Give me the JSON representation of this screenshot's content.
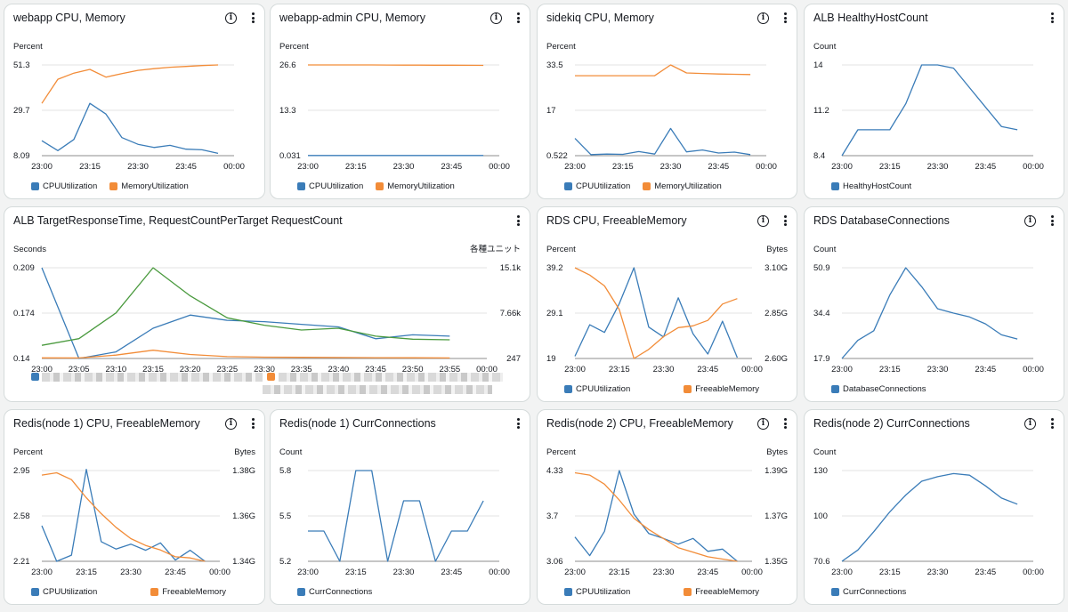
{
  "colors": {
    "blue": "#3a7cb8",
    "orange": "#f28c38",
    "green": "#4a9a3e",
    "grid": "#e3e3e3"
  },
  "cards": [
    {
      "title": "webapp CPU, Memory",
      "info": true,
      "leftUnit": "Percent",
      "rightUnit": "",
      "legend": [
        {
          "label": "CPUUtilization",
          "color": "#3a7cb8"
        },
        {
          "label": "MemoryUtilization",
          "color": "#f28c38"
        }
      ]
    },
    {
      "title": "webapp-admin CPU, Memory",
      "info": true,
      "leftUnit": "Percent",
      "rightUnit": "",
      "legend": [
        {
          "label": "CPUUtilization",
          "color": "#3a7cb8"
        },
        {
          "label": "MemoryUtilization",
          "color": "#f28c38"
        }
      ]
    },
    {
      "title": "sidekiq CPU, Memory",
      "info": true,
      "leftUnit": "Percent",
      "rightUnit": "",
      "legend": [
        {
          "label": "CPUUtilization",
          "color": "#3a7cb8"
        },
        {
          "label": "MemoryUtilization",
          "color": "#f28c38"
        }
      ]
    },
    {
      "title": "ALB HealthyHostCount",
      "info": false,
      "leftUnit": "Count",
      "rightUnit": "",
      "legend": [
        {
          "label": "HealthyHostCount",
          "color": "#3a7cb8"
        }
      ]
    },
    {
      "title": "ALB TargetResponseTime, RequestCountPerTarget RequestCount",
      "info": false,
      "leftUnit": "Seconds",
      "rightUnit": "各種ユニット",
      "legend": []
    },
    {
      "title": "RDS CPU, FreeableMemory",
      "info": true,
      "leftUnit": "Percent",
      "rightUnit": "Bytes",
      "legend": [
        {
          "label": "CPUUtilization",
          "color": "#3a7cb8"
        },
        {
          "label": "FreeableMemory",
          "color": "#f28c38"
        }
      ]
    },
    {
      "title": "RDS DatabaseConnections",
      "info": true,
      "leftUnit": "Count",
      "rightUnit": "",
      "legend": [
        {
          "label": "DatabaseConnections",
          "color": "#3a7cb8"
        }
      ]
    },
    {
      "title": "Redis(node 1) CPU, FreeableMemory",
      "info": true,
      "leftUnit": "Percent",
      "rightUnit": "Bytes",
      "legend": [
        {
          "label": "CPUUtilization",
          "color": "#3a7cb8"
        },
        {
          "label": "FreeableMemory",
          "color": "#f28c38"
        }
      ]
    },
    {
      "title": "Redis(node 1) CurrConnections",
      "info": false,
      "leftUnit": "Count",
      "rightUnit": "",
      "legend": [
        {
          "label": "CurrConnections",
          "color": "#3a7cb8"
        }
      ]
    },
    {
      "title": "Redis(node 2) CPU, FreeableMemory",
      "info": true,
      "leftUnit": "Percent",
      "rightUnit": "Bytes",
      "legend": [
        {
          "label": "CPUUtilization",
          "color": "#3a7cb8"
        },
        {
          "label": "FreeableMemory",
          "color": "#f28c38"
        }
      ]
    },
    {
      "title": "Redis(node 2) CurrConnections",
      "info": true,
      "leftUnit": "Count",
      "rightUnit": "",
      "legend": [
        {
          "label": "CurrConnections",
          "color": "#3a7cb8"
        }
      ]
    }
  ],
  "chart_data": [
    {
      "type": "line",
      "title": "webapp CPU, Memory",
      "ylabel": "Percent",
      "x": [
        "23:00",
        "23:05",
        "23:10",
        "23:15",
        "23:20",
        "23:25",
        "23:30",
        "23:35",
        "23:40",
        "23:45",
        "23:50",
        "23:55"
      ],
      "xticks": [
        "23:00",
        "23:15",
        "23:30",
        "23:45",
        "00:00"
      ],
      "xlim": [
        0,
        60
      ],
      "yticks": [
        "8.09",
        "29.7",
        "51.3"
      ],
      "ylim": [
        8.09,
        51.3
      ],
      "series": [
        {
          "name": "CPUUtilization",
          "color": "#3a7cb8",
          "axis": "left",
          "values": [
            15.2,
            10.5,
            15.8,
            33.0,
            27.9,
            16.7,
            13.5,
            12.0,
            13.0,
            11.2,
            10.9,
            9.2
          ]
        },
        {
          "name": "MemoryUtilization",
          "color": "#f28c38",
          "axis": "left",
          "values": [
            33.0,
            44.5,
            47.4,
            49.2,
            45.5,
            47.2,
            48.7,
            49.5,
            50.2,
            50.6,
            51.0,
            51.3
          ]
        }
      ]
    },
    {
      "type": "line",
      "title": "webapp-admin CPU, Memory",
      "ylabel": "Percent",
      "x": [
        "23:00",
        "23:05",
        "23:10",
        "23:15",
        "23:20",
        "23:25",
        "23:30",
        "23:35",
        "23:40",
        "23:45",
        "23:50",
        "23:55"
      ],
      "xticks": [
        "23:00",
        "23:15",
        "23:30",
        "23:45",
        "00:00"
      ],
      "xlim": [
        0,
        60
      ],
      "yticks": [
        "0.031",
        "13.3",
        "26.6"
      ],
      "ylim": [
        0.031,
        26.6
      ],
      "series": [
        {
          "name": "CPUUtilization",
          "color": "#3a7cb8",
          "axis": "left",
          "values": [
            0.09,
            0.09,
            0.09,
            0.09,
            0.09,
            0.09,
            0.09,
            0.09,
            0.09,
            0.09,
            0.09,
            0.09
          ]
        },
        {
          "name": "MemoryUtilization",
          "color": "#f28c38",
          "axis": "left",
          "values": [
            26.6,
            26.6,
            26.6,
            26.6,
            26.6,
            26.58,
            26.56,
            26.55,
            26.53,
            26.51,
            26.5,
            26.48
          ]
        }
      ]
    },
    {
      "type": "line",
      "title": "sidekiq CPU, Memory",
      "ylabel": "Percent",
      "x": [
        "23:00",
        "23:05",
        "23:10",
        "23:15",
        "23:20",
        "23:25",
        "23:30",
        "23:35",
        "23:40",
        "23:45",
        "23:50",
        "23:55"
      ],
      "xticks": [
        "23:00",
        "23:15",
        "23:30",
        "23:45",
        "00:00"
      ],
      "xlim": [
        0,
        60
      ],
      "yticks": [
        "0.522",
        "17",
        "33.5"
      ],
      "ylim": [
        0.522,
        33.5
      ],
      "series": [
        {
          "name": "CPUUtilization",
          "color": "#3a7cb8",
          "axis": "left",
          "values": [
            6.8,
            0.9,
            1.1,
            1.0,
            2.0,
            1.1,
            10.4,
            1.9,
            2.6,
            1.5,
            1.8,
            0.9
          ]
        },
        {
          "name": "MemoryUtilization",
          "color": "#f28c38",
          "axis": "left",
          "values": [
            29.6,
            29.6,
            29.6,
            29.6,
            29.6,
            29.6,
            33.5,
            30.6,
            30.4,
            30.2,
            30.1,
            30.0
          ]
        }
      ]
    },
    {
      "type": "line",
      "title": "ALB HealthyHostCount",
      "ylabel": "Count",
      "x": [
        "23:00",
        "23:05",
        "23:10",
        "23:15",
        "23:20",
        "23:25",
        "23:30",
        "23:35",
        "23:40",
        "23:45",
        "23:50",
        "23:55"
      ],
      "xticks": [
        "23:00",
        "23:15",
        "23:30",
        "23:45",
        "00:00"
      ],
      "xlim": [
        0,
        60
      ],
      "yticks": [
        "8.4",
        "11.2",
        "14"
      ],
      "ylim": [
        8.4,
        14
      ],
      "series": [
        {
          "name": "HealthyHostCount",
          "color": "#3a7cb8",
          "axis": "left",
          "values": [
            8.4,
            10,
            10,
            10,
            11.6,
            14,
            14,
            13.8,
            12.6,
            11.4,
            10.2,
            10
          ]
        }
      ]
    },
    {
      "type": "line",
      "title": "ALB TargetResponseTime, RequestCountPerTarget RequestCount",
      "ylabel": "Seconds",
      "y2label": "各種ユニット",
      "x": [
        "23:00",
        "23:05",
        "23:10",
        "23:15",
        "23:20",
        "23:25",
        "23:30",
        "23:35",
        "23:40",
        "23:45",
        "23:50",
        "23:55"
      ],
      "xticks": [
        "23:00",
        "23:05",
        "23:10",
        "23:15",
        "23:20",
        "23:25",
        "23:30",
        "23:35",
        "23:40",
        "23:45",
        "23:50",
        "23:55",
        "00:00"
      ],
      "xlim": [
        0,
        60
      ],
      "yticks": [
        "0.14",
        "0.174",
        "0.209"
      ],
      "ylim": [
        0.14,
        0.209
      ],
      "y2ticks": [
        "247",
        "7.66k",
        "15.1k"
      ],
      "y2lim": [
        247,
        15100
      ],
      "series": [
        {
          "color": "#3a7cb8",
          "axis": "left",
          "values": [
            0.209,
            0.14,
            0.145,
            0.163,
            0.173,
            0.169,
            0.168,
            0.166,
            0.164,
            0.155,
            0.158,
            0.157
          ]
        },
        {
          "color": "#f28c38",
          "axis": "right",
          "values": [
            350,
            330,
            800,
            1600,
            900,
            560,
            470,
            440,
            410,
            380,
            360,
            340
          ]
        },
        {
          "color": "#4a9a3e",
          "axis": "right",
          "values": [
            2400,
            3500,
            7700,
            15100,
            10500,
            6900,
            5700,
            4900,
            5200,
            3900,
            3400,
            3300
          ]
        }
      ]
    },
    {
      "type": "line",
      "title": "RDS CPU, FreeableMemory",
      "ylabel": "Percent",
      "y2label": "Bytes",
      "x": [
        "23:00",
        "23:05",
        "23:10",
        "23:15",
        "23:20",
        "23:25",
        "23:30",
        "23:35",
        "23:40",
        "23:45",
        "23:50",
        "23:55"
      ],
      "xticks": [
        "23:00",
        "23:15",
        "23:30",
        "23:45",
        "00:00"
      ],
      "xlim": [
        0,
        60
      ],
      "yticks": [
        "19",
        "29.1",
        "39.2"
      ],
      "ylim": [
        19,
        39.2
      ],
      "y2ticks": [
        "2.60G",
        "2.85G",
        "3.10G"
      ],
      "y2lim": [
        2.6,
        3.1
      ],
      "series": [
        {
          "name": "CPUUtilization",
          "color": "#3a7cb8",
          "axis": "left",
          "values": [
            19.5,
            26.5,
            24.8,
            31.2,
            39.2,
            26.0,
            23.8,
            32.5,
            24.5,
            20.0,
            27.3,
            19.2
          ]
        },
        {
          "name": "FreeableMemory",
          "color": "#f28c38",
          "axis": "right",
          "values": [
            3.1,
            3.06,
            3.0,
            2.87,
            2.6,
            2.65,
            2.72,
            2.77,
            2.78,
            2.81,
            2.9,
            2.93
          ]
        }
      ]
    },
    {
      "type": "line",
      "title": "RDS DatabaseConnections",
      "ylabel": "Count",
      "x": [
        "23:00",
        "23:05",
        "23:10",
        "23:15",
        "23:20",
        "23:25",
        "23:30",
        "23:35",
        "23:40",
        "23:45",
        "23:50",
        "23:55"
      ],
      "xticks": [
        "23:00",
        "23:15",
        "23:30",
        "23:45",
        "00:00"
      ],
      "xlim": [
        0,
        60
      ],
      "yticks": [
        "17.9",
        "34.4",
        "50.9"
      ],
      "ylim": [
        17.9,
        50.9
      ],
      "series": [
        {
          "name": "DatabaseConnections",
          "color": "#3a7cb8",
          "axis": "left",
          "values": [
            17.9,
            24.5,
            28.0,
            41.0,
            50.9,
            44.0,
            36.0,
            34.4,
            33.0,
            30.5,
            26.5,
            25.0
          ]
        }
      ]
    },
    {
      "type": "line",
      "title": "Redis(node 1) CPU, FreeableMemory",
      "ylabel": "Percent",
      "y2label": "Bytes",
      "x": [
        "23:00",
        "23:05",
        "23:10",
        "23:15",
        "23:20",
        "23:25",
        "23:30",
        "23:35",
        "23:40",
        "23:45",
        "23:50",
        "23:55"
      ],
      "xticks": [
        "23:00",
        "23:15",
        "23:30",
        "23:45",
        "00:00"
      ],
      "xlim": [
        0,
        60
      ],
      "yticks": [
        "2.21",
        "2.58",
        "2.95"
      ],
      "ylim": [
        2.21,
        2.95
      ],
      "y2ticks": [
        "1.34G",
        "1.36G",
        "1.38G"
      ],
      "y2lim": [
        1.34,
        1.38
      ],
      "series": [
        {
          "name": "CPUUtilization",
          "color": "#3a7cb8",
          "axis": "left",
          "values": [
            2.5,
            2.21,
            2.26,
            2.96,
            2.37,
            2.31,
            2.35,
            2.3,
            2.36,
            2.22,
            2.3,
            2.21
          ]
        },
        {
          "name": "FreeableMemory",
          "color": "#f28c38",
          "axis": "right",
          "values": [
            1.378,
            1.379,
            1.376,
            1.368,
            1.361,
            1.355,
            1.35,
            1.347,
            1.345,
            1.342,
            1.3415,
            1.34
          ]
        }
      ]
    },
    {
      "type": "line",
      "title": "Redis(node 1) CurrConnections",
      "ylabel": "Count",
      "x": [
        "23:00",
        "23:05",
        "23:10",
        "23:15",
        "23:20",
        "23:25",
        "23:30",
        "23:35",
        "23:40",
        "23:45",
        "23:50",
        "23:55"
      ],
      "xticks": [
        "23:00",
        "23:15",
        "23:30",
        "23:45",
        "00:00"
      ],
      "xlim": [
        0,
        60
      ],
      "yticks": [
        "5.2",
        "5.5",
        "5.8"
      ],
      "ylim": [
        5.2,
        5.8
      ],
      "series": [
        {
          "name": "CurrConnections",
          "color": "#3a7cb8",
          "axis": "left",
          "values": [
            5.4,
            5.4,
            5.2,
            5.8,
            5.8,
            5.2,
            5.6,
            5.6,
            5.2,
            5.4,
            5.4,
            5.6
          ]
        }
      ]
    },
    {
      "type": "line",
      "title": "Redis(node 2) CPU, FreeableMemory",
      "ylabel": "Percent",
      "y2label": "Bytes",
      "x": [
        "23:00",
        "23:05",
        "23:10",
        "23:15",
        "23:20",
        "23:25",
        "23:30",
        "23:35",
        "23:40",
        "23:45",
        "23:50",
        "23:55"
      ],
      "xticks": [
        "23:00",
        "23:15",
        "23:30",
        "23:45",
        "00:00"
      ],
      "xlim": [
        0,
        60
      ],
      "yticks": [
        "3.06",
        "3.7",
        "4.33"
      ],
      "ylim": [
        3.06,
        4.33
      ],
      "y2ticks": [
        "1.35G",
        "1.37G",
        "1.39G"
      ],
      "y2lim": [
        1.35,
        1.39
      ],
      "series": [
        {
          "name": "CPUUtilization",
          "color": "#3a7cb8",
          "axis": "left",
          "values": [
            3.4,
            3.14,
            3.48,
            4.33,
            3.72,
            3.45,
            3.38,
            3.3,
            3.38,
            3.2,
            3.23,
            3.06
          ]
        },
        {
          "name": "FreeableMemory",
          "color": "#f28c38",
          "axis": "right",
          "values": [
            1.389,
            1.388,
            1.384,
            1.377,
            1.369,
            1.364,
            1.36,
            1.356,
            1.354,
            1.352,
            1.351,
            1.35
          ]
        }
      ]
    },
    {
      "type": "line",
      "title": "Redis(node 2) CurrConnections",
      "ylabel": "Count",
      "x": [
        "23:00",
        "23:05",
        "23:10",
        "23:15",
        "23:20",
        "23:25",
        "23:30",
        "23:35",
        "23:40",
        "23:45",
        "23:50",
        "23:55"
      ],
      "xticks": [
        "23:00",
        "23:15",
        "23:30",
        "23:45",
        "00:00"
      ],
      "xlim": [
        0,
        60
      ],
      "yticks": [
        "70.6",
        "100",
        "130"
      ],
      "ylim": [
        70.6,
        130
      ],
      "series": [
        {
          "name": "CurrConnections",
          "color": "#3a7cb8",
          "axis": "left",
          "values": [
            70.6,
            78.0,
            90.0,
            103.0,
            114.0,
            123.0,
            126.0,
            128.0,
            127.0,
            120.0,
            112.0,
            108.0
          ]
        }
      ]
    }
  ]
}
